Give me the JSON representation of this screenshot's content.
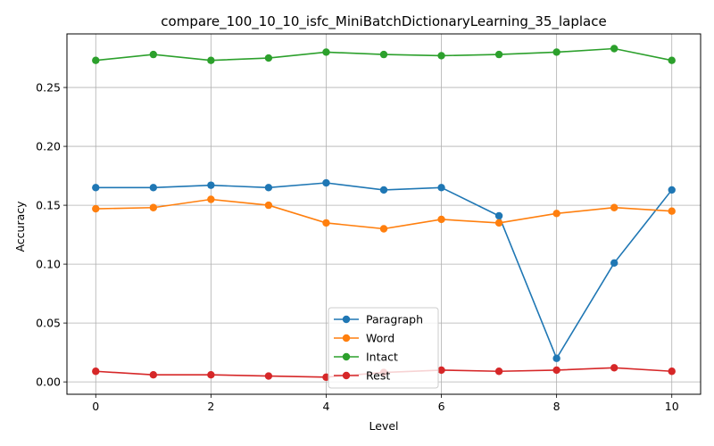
{
  "chart_data": {
    "type": "line",
    "title": "compare_100_10_10_isfc_MiniBatchDictionaryLearning_35_laplace",
    "xlabel": "Level",
    "ylabel": "Accuracy",
    "x": [
      0,
      1,
      2,
      3,
      4,
      5,
      6,
      7,
      8,
      9,
      10
    ],
    "xlim": [
      -0.5,
      10.5
    ],
    "ylim": [
      -0.0105,
      0.2955
    ],
    "xticks": [
      0,
      2,
      4,
      6,
      8,
      10
    ],
    "yticks": [
      0.0,
      0.05,
      0.1,
      0.15,
      0.2,
      0.25
    ],
    "ytick_labels": [
      "0.00",
      "0.05",
      "0.10",
      "0.15",
      "0.20",
      "0.25"
    ],
    "grid": true,
    "legend_position": "bottom-center",
    "series": [
      {
        "name": "Paragraph",
        "color": "#1f77b4",
        "values": [
          0.165,
          0.165,
          0.167,
          0.165,
          0.169,
          0.163,
          0.165,
          0.141,
          0.02,
          0.101,
          0.163
        ]
      },
      {
        "name": "Word",
        "color": "#ff7f0e",
        "values": [
          0.147,
          0.148,
          0.155,
          0.15,
          0.135,
          0.13,
          0.138,
          0.135,
          0.143,
          0.148,
          0.145
        ]
      },
      {
        "name": "Intact",
        "color": "#2ca02c",
        "values": [
          0.273,
          0.278,
          0.273,
          0.275,
          0.28,
          0.278,
          0.277,
          0.278,
          0.28,
          0.283,
          0.273
        ]
      },
      {
        "name": "Rest",
        "color": "#d62728",
        "values": [
          0.009,
          0.006,
          0.006,
          0.005,
          0.004,
          0.008,
          0.01,
          0.009,
          0.01,
          0.012,
          0.009
        ]
      }
    ]
  }
}
